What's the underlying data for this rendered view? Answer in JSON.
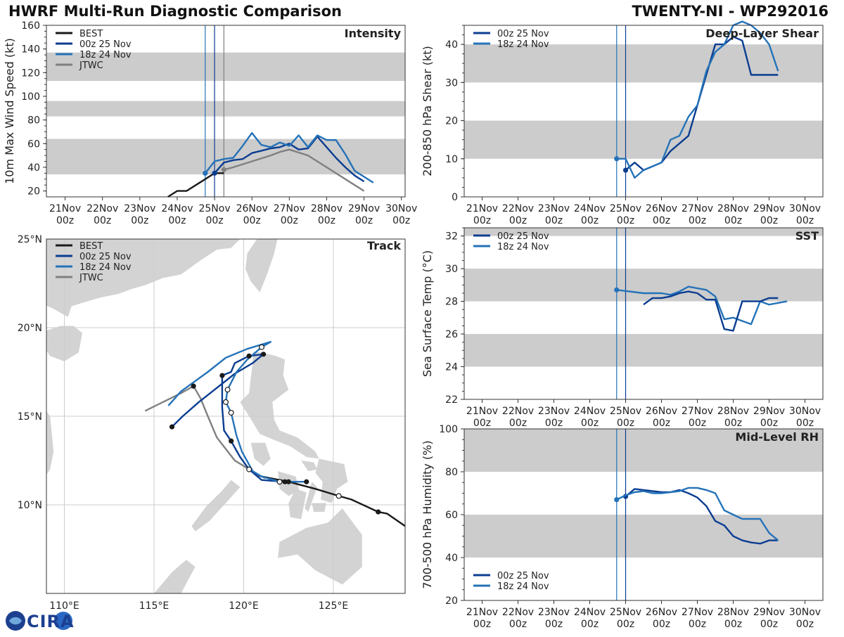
{
  "header": {
    "title_left": "HWRF Multi-Run Diagnostic Comparison",
    "title_right": "TWENTY-NI - WP292016"
  },
  "logo_text": "CIRA",
  "colors": {
    "best": "#1a1a1a",
    "run_00z": "#0b3d91",
    "run_18z": "#2472b8",
    "jtwc": "#808080",
    "band": "#cccccc",
    "land": "#d3d3d3",
    "grid": "#cccccc"
  },
  "chart_data": [
    {
      "id": "intensity",
      "type": "line",
      "title": "Intensity",
      "ylabel": "10m Max Wind Speed (kt)",
      "xlim": [
        0,
        9.6
      ],
      "ylim": [
        15,
        160
      ],
      "yticks": [
        20,
        40,
        60,
        80,
        100,
        120,
        140,
        160
      ],
      "xtick_pos": [
        0.5,
        1.5,
        2.5,
        3.5,
        4.5,
        5.5,
        6.5,
        7.5,
        8.5,
        9.5
      ],
      "xtick_top": [
        "21Nov",
        "22Nov",
        "23Nov",
        "24Nov",
        "25Nov",
        "26Nov",
        "27Nov",
        "28Nov",
        "29Nov",
        "30Nov"
      ],
      "xtick_bottom": [
        "00z",
        "00z",
        "00z",
        "00z",
        "00z",
        "00z",
        "00z",
        "00z",
        "00z",
        "00z"
      ],
      "bands": [
        [
          34,
          64
        ],
        [
          83,
          96
        ],
        [
          113,
          137
        ]
      ],
      "vlines": [
        {
          "x": 4.25,
          "color": "#2472b8"
        },
        {
          "x": 4.5,
          "color": "#0b3d91"
        },
        {
          "x": 4.75,
          "color": "#808080"
        }
      ],
      "legend": [
        "BEST",
        "00z 25 Nov",
        "18z 24 Nov",
        "JTWC"
      ],
      "series": [
        {
          "name": "BEST",
          "color": "#1a1a1a",
          "x": [
            3.25,
            3.5,
            3.75,
            4.0,
            4.25,
            4.5,
            4.75
          ],
          "y": [
            15,
            20,
            20,
            25,
            30,
            35,
            35
          ]
        },
        {
          "name": "JTWC",
          "color": "#808080",
          "x": [
            4.75,
            5.0,
            5.5,
            6.0,
            6.25,
            6.5,
            7.0,
            7.5,
            8.0,
            8.5
          ],
          "y": [
            38,
            40,
            45,
            50,
            53,
            55,
            50,
            40,
            30,
            20
          ],
          "markers": [
            0
          ]
        },
        {
          "name": "00z 25 Nov",
          "color": "#0b3d91",
          "x": [
            4.5,
            4.75,
            5.0,
            5.25,
            5.5,
            5.75,
            6.0,
            6.25,
            6.5,
            6.75,
            7.0,
            7.25,
            7.5,
            7.75,
            8.0,
            8.25,
            8.5
          ],
          "y": [
            35,
            44,
            46,
            47,
            52,
            54,
            56,
            57,
            60,
            55,
            56,
            66,
            57,
            48,
            40,
            33,
            28
          ],
          "markers": [
            0
          ]
        },
        {
          "name": "18z 24 Nov",
          "color": "#2472b8",
          "x": [
            4.25,
            4.5,
            4.75,
            5.0,
            5.25,
            5.5,
            5.75,
            6.0,
            6.25,
            6.5,
            6.75,
            7.0,
            7.25,
            7.5,
            7.75,
            8.0,
            8.25,
            8.5,
            8.75
          ],
          "y": [
            35,
            45,
            47,
            48,
            58,
            69,
            59,
            57,
            61,
            58,
            67,
            57,
            67,
            63,
            63,
            51,
            37,
            32,
            27
          ],
          "markers": [
            0
          ]
        }
      ]
    },
    {
      "id": "shear",
      "type": "line",
      "title": "Deep-Layer Shear",
      "ylabel": "200-850 hPa Shear (kt)",
      "xlim": [
        0,
        10
      ],
      "ylim": [
        0,
        45
      ],
      "yticks": [
        0,
        10,
        20,
        30,
        40
      ],
      "xtick_pos": [
        0.5,
        1.5,
        2.5,
        3.5,
        4.5,
        5.5,
        6.5,
        7.5,
        8.5,
        9.5
      ],
      "xtick_top": [
        "21Nov",
        "22Nov",
        "23Nov",
        "24Nov",
        "25Nov",
        "26Nov",
        "27Nov",
        "28Nov",
        "29Nov",
        "30Nov"
      ],
      "xtick_bottom": [
        "00z",
        "00z",
        "00z",
        "00z",
        "00z",
        "00z",
        "00z",
        "00z",
        "00z",
        "00z"
      ],
      "bands": [
        [
          10,
          20
        ],
        [
          30,
          40
        ]
      ],
      "vlines": [
        {
          "x": 4.25,
          "color": "#2472b8"
        },
        {
          "x": 4.5,
          "color": "#0b3d91"
        }
      ],
      "legend": [
        "00z 25 Nov",
        "18z 24 Nov"
      ],
      "series": [
        {
          "name": "00z 25 Nov",
          "color": "#0b3d91",
          "x": [
            4.5,
            4.75,
            5.0,
            5.5,
            5.75,
            6.0,
            6.25,
            6.5,
            7.0,
            7.25,
            7.5,
            7.75,
            8.0,
            8.25,
            8.5,
            8.75
          ],
          "y": [
            7,
            9,
            7,
            9,
            12,
            14,
            16,
            24,
            40,
            40,
            42,
            41,
            32,
            32,
            32,
            32
          ],
          "markers": [
            0
          ]
        },
        {
          "name": "18z 24 Nov",
          "color": "#2472b8",
          "x": [
            4.25,
            4.5,
            4.75,
            5.0,
            5.5,
            5.75,
            6.0,
            6.25,
            6.5,
            6.75,
            7.0,
            7.25,
            7.5,
            7.75,
            8.0,
            8.25,
            8.5,
            8.75
          ],
          "y": [
            10,
            10,
            5,
            7,
            9,
            15,
            16,
            21,
            24,
            33,
            38,
            40,
            45,
            46,
            45,
            43,
            40,
            33
          ],
          "markers": [
            0
          ]
        }
      ]
    },
    {
      "id": "sst",
      "type": "line",
      "title": "SST",
      "ylabel": "Sea Surface Temp (°C)",
      "xlim": [
        0,
        10
      ],
      "ylim": [
        22,
        32.5
      ],
      "yticks": [
        22,
        24,
        26,
        28,
        30,
        32
      ],
      "xtick_pos": [
        0.5,
        1.5,
        2.5,
        3.5,
        4.5,
        5.5,
        6.5,
        7.5,
        8.5,
        9.5
      ],
      "xtick_top": [
        "21Nov",
        "22Nov",
        "23Nov",
        "24Nov",
        "25Nov",
        "26Nov",
        "27Nov",
        "28Nov",
        "29Nov",
        "30Nov"
      ],
      "xtick_bottom": [
        "00z",
        "00z",
        "00z",
        "00z",
        "00z",
        "00z",
        "00z",
        "00z",
        "00z",
        "00z"
      ],
      "bands": [
        [
          24,
          26
        ],
        [
          28,
          30
        ],
        [
          32,
          32.5
        ]
      ],
      "vlines": [
        {
          "x": 4.25,
          "color": "#2472b8"
        },
        {
          "x": 4.5,
          "color": "#0b3d91"
        }
      ],
      "legend": [
        "00z 25 Nov",
        "18z 24 Nov"
      ],
      "series": [
        {
          "name": "18z 24 Nov",
          "color": "#2472b8",
          "x": [
            4.25,
            5.0,
            5.25,
            5.5,
            5.75,
            6.0,
            6.25,
            6.5,
            6.75,
            7.0,
            7.25,
            7.5,
            7.75,
            8.0,
            8.25,
            8.5,
            9.0
          ],
          "y": [
            28.7,
            28.5,
            28.5,
            28.5,
            28.4,
            28.6,
            28.9,
            28.8,
            28.7,
            28.3,
            26.9,
            27.0,
            26.8,
            26.6,
            28.0,
            27.8,
            28.0
          ],
          "markers": [
            0
          ]
        },
        {
          "name": "00z 25 Nov",
          "color": "#0b3d91",
          "x": [
            5.0,
            5.25,
            5.5,
            5.75,
            6.0,
            6.25,
            6.5,
            6.75,
            7.0,
            7.25,
            7.5,
            7.75,
            8.25,
            8.5,
            8.75
          ],
          "y": [
            27.8,
            28.2,
            28.2,
            28.3,
            28.5,
            28.6,
            28.5,
            28.1,
            28.1,
            26.3,
            26.2,
            28.0,
            28.0,
            28.2,
            28.2
          ],
          "markers": []
        }
      ]
    },
    {
      "id": "rh",
      "type": "line",
      "title": "Mid-Level RH",
      "ylabel": "700-500 hPa Humidity (%)",
      "xlim": [
        0,
        10
      ],
      "ylim": [
        20,
        100
      ],
      "yticks": [
        20,
        40,
        60,
        80,
        100
      ],
      "xtick_pos": [
        0.5,
        1.5,
        2.5,
        3.5,
        4.5,
        5.5,
        6.5,
        7.5,
        8.5,
        9.5
      ],
      "xtick_top": [
        "21Nov",
        "22Nov",
        "23Nov",
        "24Nov",
        "25Nov",
        "26Nov",
        "27Nov",
        "28Nov",
        "29Nov",
        "30Nov"
      ],
      "xtick_bottom": [
        "00z",
        "00z",
        "00z",
        "00z",
        "00z",
        "00z",
        "00z",
        "00z",
        "00z",
        "00z"
      ],
      "bands": [
        [
          40,
          60
        ],
        [
          80,
          100
        ]
      ],
      "vlines": [
        {
          "x": 4.25,
          "color": "#2472b8"
        },
        {
          "x": 4.5,
          "color": "#0b3d91"
        }
      ],
      "legend": [
        "00z 25 Nov",
        "18z 24 Nov"
      ],
      "legend_position": "bottom-left",
      "series": [
        {
          "name": "00z 25 Nov",
          "color": "#0b3d91",
          "x": [
            4.5,
            4.75,
            5.0,
            5.25,
            5.5,
            5.75,
            6.0,
            6.25,
            6.5,
            6.75,
            7.0,
            7.25,
            7.5,
            7.75,
            8.0,
            8.25,
            8.5,
            8.75
          ],
          "y": [
            68.5,
            72,
            71.5,
            71,
            70.5,
            70.5,
            71.5,
            70,
            68,
            64,
            57,
            55,
            50,
            48,
            47,
            46.5,
            48,
            48
          ],
          "markers": [
            0
          ]
        },
        {
          "name": "18z 24 Nov",
          "color": "#2472b8",
          "x": [
            4.25,
            4.5,
            4.75,
            5.0,
            5.25,
            5.5,
            5.75,
            6.0,
            6.25,
            6.5,
            6.75,
            7.0,
            7.25,
            7.5,
            7.75,
            8.0,
            8.25,
            8.5,
            8.75
          ],
          "y": [
            67,
            69,
            70.5,
            71,
            70,
            70,
            70.5,
            71,
            72.5,
            72.5,
            71.5,
            70,
            62,
            60,
            58,
            58,
            58,
            51.5,
            48
          ],
          "markers": [
            0
          ]
        }
      ]
    },
    {
      "id": "track",
      "type": "map-track",
      "title": "Track",
      "lon_range": [
        109,
        129
      ],
      "lat_range": [
        5,
        25
      ],
      "lon_ticks": [
        110,
        115,
        120,
        125
      ],
      "lon_labels": [
        "110°E",
        "115°E",
        "120°E",
        "125°E"
      ],
      "lat_ticks": [
        10,
        15,
        20,
        25
      ],
      "lat_labels": [
        "10°N",
        "15°N",
        "20°N",
        "25°N"
      ],
      "legend": [
        "BEST",
        "00z 25 Nov",
        "18z 24 Nov",
        "JTWC"
      ],
      "series": [
        {
          "name": "BEST",
          "color": "#1a1a1a",
          "lon": [
            129.0,
            128.0,
            127.5,
            126.0,
            125.3,
            124.0,
            122.5,
            121.5,
            121.0,
            120.7
          ],
          "lat": [
            8.8,
            9.5,
            9.6,
            10.3,
            10.5,
            10.9,
            11.3,
            11.5,
            11.6,
            11.7
          ],
          "filled": [
            2,
            6
          ],
          "hollow": [
            4
          ]
        },
        {
          "name": "JTWC",
          "color": "#808080",
          "lon": [
            121.2,
            120.8,
            119.5,
            118.5,
            118.0,
            117.6,
            117.2,
            116.5,
            114.5
          ],
          "lat": [
            11.5,
            11.7,
            12.5,
            13.8,
            15.0,
            16.0,
            16.7,
            16.3,
            15.3
          ],
          "filled": [
            6
          ],
          "hollow": []
        },
        {
          "name": "00z 25 Nov",
          "color": "#0b3d91",
          "lon": [
            122.3,
            121.0,
            120.3,
            119.8,
            119.3,
            118.9,
            118.8,
            118.8,
            119.3,
            119.5,
            120.3,
            121.1,
            120.5,
            119.5,
            118.5,
            117.5,
            116.6,
            116.0
          ],
          "lat": [
            11.3,
            11.4,
            12.0,
            12.7,
            13.6,
            14.2,
            15.5,
            17.3,
            17.5,
            18.0,
            18.4,
            18.5,
            18.0,
            17.4,
            16.6,
            15.8,
            15.0,
            14.4
          ],
          "filled": [
            0,
            4,
            7,
            10,
            11,
            17
          ],
          "hollow": [
            2
          ]
        },
        {
          "name": "18z 24 Nov",
          "color": "#2472b8",
          "lon": [
            123.5,
            122.0,
            121.0,
            120.5,
            119.9,
            119.6,
            119.3,
            119.0,
            119.1,
            119.6,
            120.2,
            121.0,
            121.5,
            120.2,
            119.0,
            118.0,
            116.5,
            115.8
          ],
          "lat": [
            11.3,
            11.3,
            11.6,
            11.9,
            13.0,
            13.9,
            15.2,
            15.8,
            16.5,
            17.5,
            18.2,
            18.9,
            19.2,
            18.8,
            18.3,
            17.5,
            16.4,
            15.6
          ],
          "filled": [
            0,
            7,
            11
          ],
          "hollow": [
            1,
            6,
            7,
            8,
            11
          ]
        }
      ]
    }
  ]
}
